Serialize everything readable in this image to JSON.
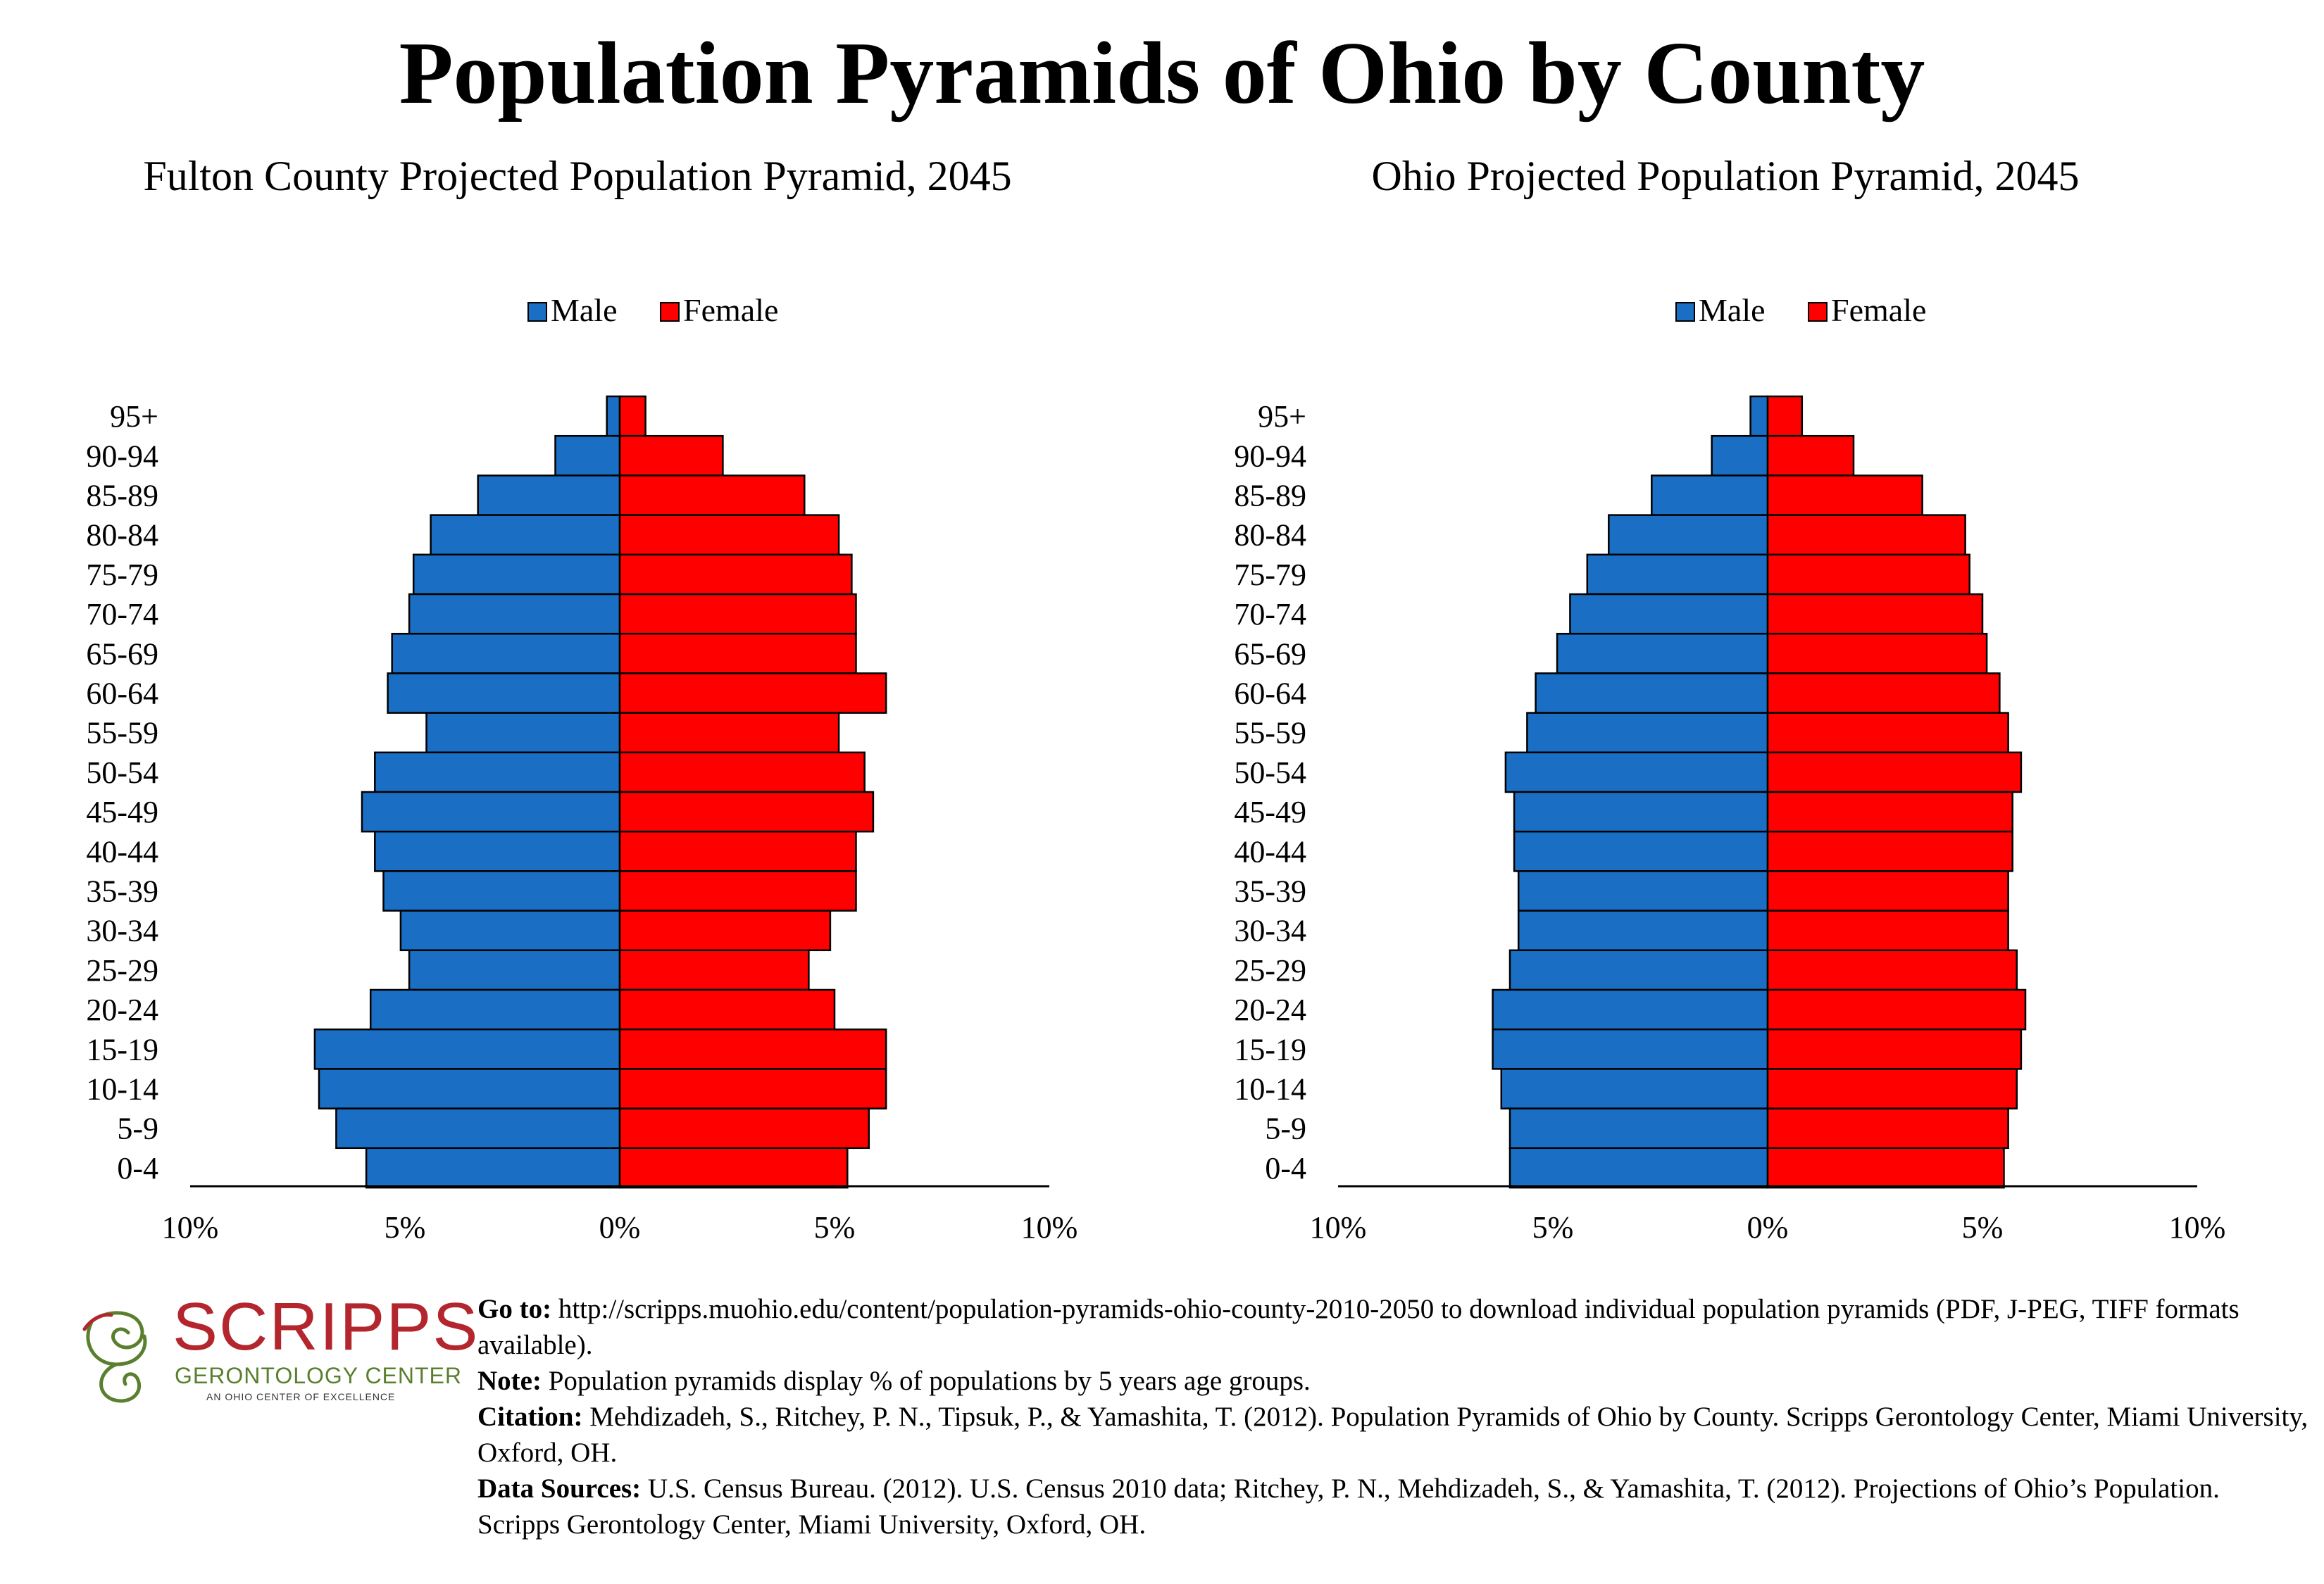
{
  "page": {
    "title": "Population Pyramids of Ohio by County"
  },
  "colors": {
    "male": "#1a6fc4",
    "female": "#ff0000",
    "stroke": "#000000"
  },
  "legend": {
    "male": "Male",
    "female": "Female"
  },
  "chart_data": [
    {
      "type": "bar",
      "title": "Fulton County Projected Population Pyramid, 2045",
      "orientation": "horizontal-pyramid",
      "categories": [
        "0-4",
        "5-9",
        "10-14",
        "15-19",
        "20-24",
        "25-29",
        "30-34",
        "35-39",
        "40-44",
        "45-49",
        "50-54",
        "55-59",
        "60-64",
        "65-69",
        "70-74",
        "75-79",
        "80-84",
        "85-89",
        "90-94",
        "95+"
      ],
      "series": [
        {
          "name": "Male",
          "values": [
            5.9,
            6.6,
            7.0,
            7.1,
            5.8,
            4.9,
            5.1,
            5.5,
            5.7,
            6.0,
            5.7,
            4.5,
            5.4,
            5.3,
            4.9,
            4.8,
            4.4,
            3.3,
            1.5,
            0.3
          ]
        },
        {
          "name": "Female",
          "values": [
            5.3,
            5.8,
            6.2,
            6.2,
            5.0,
            4.4,
            4.9,
            5.5,
            5.5,
            5.9,
            5.7,
            5.1,
            6.2,
            5.5,
            5.5,
            5.4,
            5.1,
            4.3,
            2.4,
            0.6
          ]
        }
      ],
      "xlim": [
        -10,
        10
      ],
      "x_tick_labels": [
        "10%",
        "5%",
        "0%",
        "5%",
        "10%"
      ],
      "legend_position": "top"
    },
    {
      "type": "bar",
      "title": "Ohio Projected Population Pyramid, 2045",
      "orientation": "horizontal-pyramid",
      "categories": [
        "0-4",
        "5-9",
        "10-14",
        "15-19",
        "20-24",
        "25-29",
        "30-34",
        "35-39",
        "40-44",
        "45-49",
        "50-54",
        "55-59",
        "60-64",
        "65-69",
        "70-74",
        "75-79",
        "80-84",
        "85-89",
        "90-94",
        "95+"
      ],
      "series": [
        {
          "name": "Male",
          "values": [
            6.0,
            6.0,
            6.2,
            6.4,
            6.4,
            6.0,
            5.8,
            5.8,
            5.9,
            5.9,
            6.1,
            5.6,
            5.4,
            4.9,
            4.6,
            4.2,
            3.7,
            2.7,
            1.3,
            0.4
          ]
        },
        {
          "name": "Female",
          "values": [
            5.5,
            5.6,
            5.8,
            5.9,
            6.0,
            5.8,
            5.6,
            5.6,
            5.7,
            5.7,
            5.9,
            5.6,
            5.4,
            5.1,
            5.0,
            4.7,
            4.6,
            3.6,
            2.0,
            0.8
          ]
        }
      ],
      "xlim": [
        -10,
        10
      ],
      "x_tick_labels": [
        "10%",
        "5%",
        "0%",
        "5%",
        "10%"
      ],
      "legend_position": "top"
    }
  ],
  "logo": {
    "name": "SCRIPPS",
    "subtitle": "GERONTOLOGY CENTER",
    "tagline": "AN OHIO CENTER OF EXCELLENCE"
  },
  "notes": {
    "goto_label": "Go to:",
    "goto_text": " http://scripps.muohio.edu/content/population-pyramids-ohio-county-2010-2050 to download individual population pyramids (PDF, J-PEG, TIFF formats available).",
    "note_label": "Note:",
    "note_text": " Population pyramids display % of populations by 5 years age groups.",
    "citation_label": "Citation:",
    "citation_text": " Mehdizadeh, S., Ritchey, P. N., Tipsuk, P., & Yamashita, T. (2012). Population Pyramids of Ohio by County. Scripps Gerontology Center, Miami University, Oxford, OH.",
    "sources_label": "Data Sources:",
    "sources_text": " U.S. Census Bureau. (2012). U.S. Census 2010 data; Ritchey, P. N., Mehdizadeh, S., & Yamashita, T. (2012). Projections of Ohio’s Population. Scripps Gerontology Center, Miami University, Oxford, OH."
  }
}
